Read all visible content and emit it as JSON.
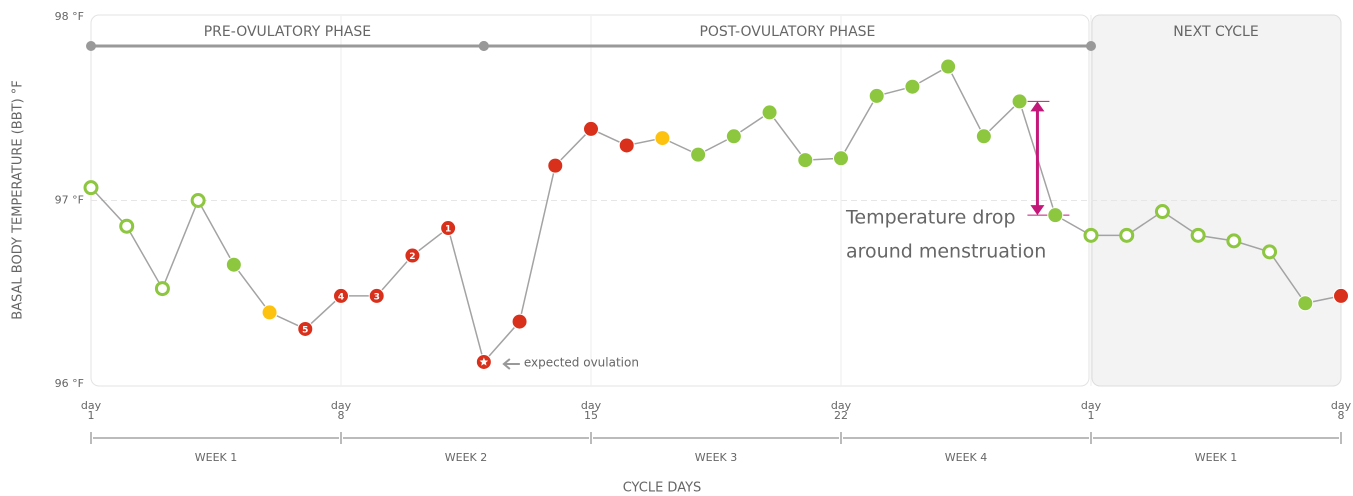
{
  "chart_data": {
    "type": "line",
    "y_label": "BASAL BODY TEMPERATURE (BBT) °F",
    "x_label": "CYCLE DAYS",
    "x": [
      1,
      2,
      3,
      4,
      5,
      6,
      7,
      8,
      9,
      10,
      11,
      12,
      13,
      14,
      15,
      16,
      17,
      18,
      19,
      20,
      21,
      22,
      23,
      24,
      25,
      26,
      27,
      28,
      29,
      30,
      31,
      32,
      33,
      34,
      35,
      36
    ],
    "values": [
      97.07,
      96.86,
      96.52,
      97.0,
      96.65,
      96.39,
      96.3,
      96.48,
      96.48,
      96.7,
      96.85,
      96.12,
      96.34,
      97.19,
      97.39,
      97.3,
      97.34,
      97.25,
      97.35,
      97.48,
      97.22,
      97.23,
      97.57,
      97.62,
      97.73,
      97.35,
      97.54,
      96.92,
      96.81,
      96.81,
      96.94,
      96.81,
      96.78,
      96.72,
      96.44,
      96.48
    ],
    "marker_colors": [
      "#8dc63f",
      "#8dc63f",
      "#8dc63f",
      "#8dc63f",
      "#8dc63f",
      "#fdc20f",
      "#d9301c",
      "#d9301c",
      "#d9301c",
      "#d9301c",
      "#d9301c",
      "#d9301c",
      "#d9301c",
      "#d9301c",
      "#d9301c",
      "#d9301c",
      "#fdc20f",
      "#8dc63f",
      "#8dc63f",
      "#8dc63f",
      "#8dc63f",
      "#8dc63f",
      "#8dc63f",
      "#8dc63f",
      "#8dc63f",
      "#8dc63f",
      "#8dc63f",
      "#8dc63f",
      "#8dc63f",
      "#8dc63f",
      "#8dc63f",
      "#8dc63f",
      "#8dc63f",
      "#8dc63f",
      "#8dc63f",
      "#d9301c"
    ],
    "hollow": [
      true,
      true,
      true,
      true,
      false,
      false,
      false,
      false,
      false,
      false,
      false,
      false,
      false,
      false,
      false,
      false,
      false,
      false,
      false,
      false,
      false,
      false,
      false,
      false,
      false,
      false,
      false,
      false,
      true,
      true,
      true,
      true,
      true,
      true,
      false,
      false
    ],
    "marker_labels": [
      null,
      null,
      null,
      null,
      null,
      null,
      "5",
      "4",
      "3",
      "2",
      "1",
      null,
      null,
      null,
      null,
      null,
      null,
      null,
      null,
      null,
      null,
      null,
      null,
      null,
      null,
      null,
      null,
      null,
      null,
      null,
      null,
      null,
      null,
      null,
      null,
      null
    ],
    "line_color": "#a3a3a3",
    "xlim": [
      1,
      36
    ],
    "xticks": [
      {
        "value": 1,
        "label": "day 1"
      },
      {
        "value": 8,
        "label": "day 8"
      },
      {
        "value": 15,
        "label": "day 15"
      },
      {
        "value": 22,
        "label": "day 22"
      },
      {
        "value": 29,
        "label": "day 1"
      },
      {
        "value": 36,
        "label": "day 8"
      }
    ],
    "ylim": [
      96,
      98
    ],
    "yticks": [
      {
        "value": 96,
        "label": "96 °F"
      },
      {
        "value": 97,
        "label": "97 °F"
      },
      {
        "value": 98,
        "label": "98 °F"
      }
    ],
    "phases": [
      {
        "label": "PRE-OVULATORY PHASE",
        "start": 1,
        "end": 12
      },
      {
        "label": "POST-OVULATORY PHASE",
        "start": 12,
        "end": 29
      },
      {
        "label": "NEXT CYCLE",
        "start": 29,
        "end": 36,
        "shaded": true
      }
    ],
    "weeks": [
      {
        "label": "WEEK 1",
        "start": 1,
        "end": 8
      },
      {
        "label": "WEEK 2",
        "start": 8,
        "end": 15
      },
      {
        "label": "WEEK 3",
        "start": 15,
        "end": 22
      },
      {
        "label": "WEEK 4",
        "start": 22,
        "end": 29
      },
      {
        "label": "WEEK 1",
        "start": 29,
        "end": 36
      }
    ],
    "annotations": [
      {
        "text": "expected ovulation",
        "x": 12
      },
      {
        "lines": [
          "Temperature drop",
          "around menstruation"
        ],
        "from": 27,
        "to": 28,
        "color": "#c4177a"
      }
    ]
  }
}
